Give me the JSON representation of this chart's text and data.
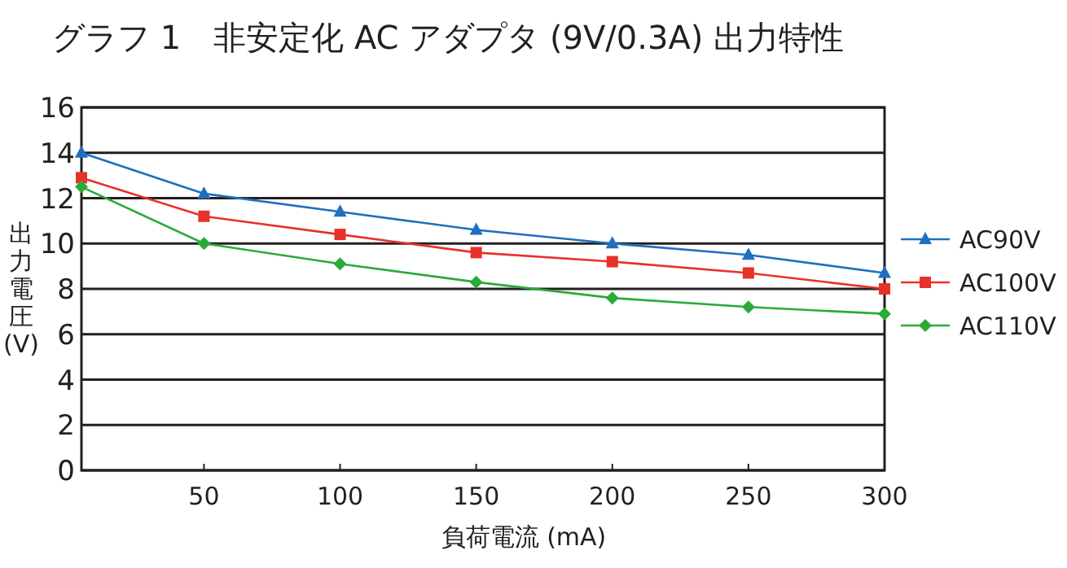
{
  "chart_data": {
    "type": "line",
    "title": "グラフ 1　非安定化 AC アダプタ (9V/0.3A) 出力特性",
    "xlabel": "負荷電流 (mA)",
    "ylabel": "出力電圧 (V)",
    "x": [
      5,
      50,
      100,
      150,
      200,
      250,
      300
    ],
    "xlim": [
      5,
      300
    ],
    "xticks": [
      50,
      100,
      150,
      200,
      250,
      300
    ],
    "ylim": [
      0,
      16
    ],
    "yticks": [
      0,
      2,
      4,
      6,
      8,
      10,
      12,
      14,
      16
    ],
    "grid": "y",
    "legend": "right",
    "series": [
      {
        "name": "AC90V",
        "color": "#1f6fc0",
        "marker": "triangle",
        "values": [
          14.0,
          12.2,
          11.4,
          10.6,
          10.0,
          9.5,
          8.7
        ]
      },
      {
        "name": "AC100V",
        "color": "#e8312a",
        "marker": "square",
        "values": [
          12.9,
          11.2,
          10.4,
          9.6,
          9.2,
          8.7,
          8.0
        ]
      },
      {
        "name": "AC110V",
        "color": "#2aab38",
        "marker": "diamond",
        "values": [
          12.5,
          10.0,
          9.1,
          8.3,
          7.6,
          7.2,
          6.9
        ]
      }
    ]
  }
}
